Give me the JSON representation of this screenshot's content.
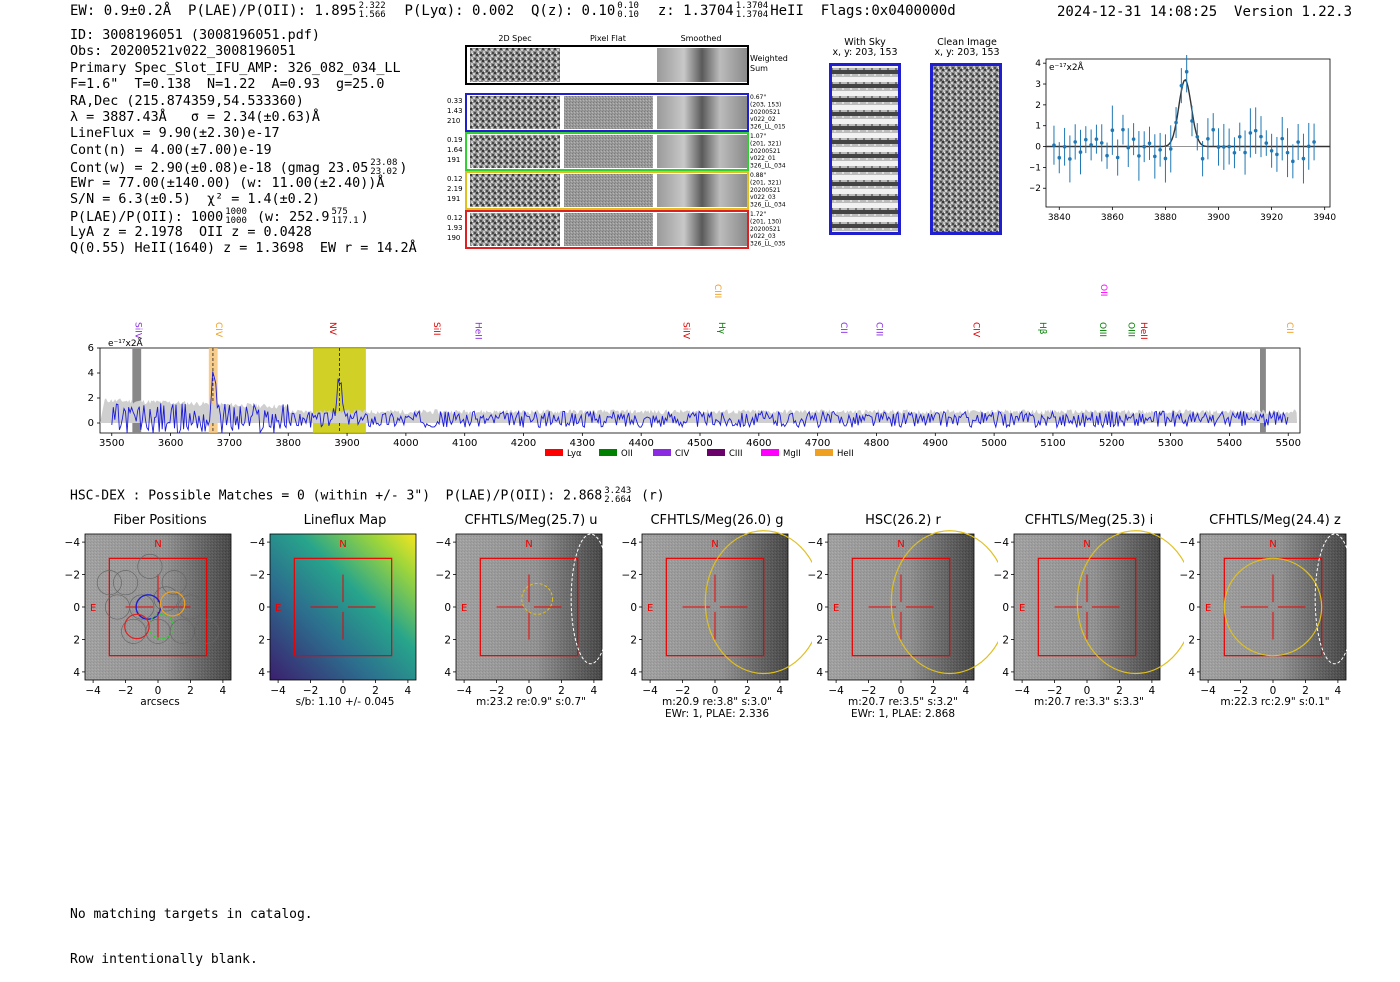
{
  "header": {
    "ew": "EW: 0.9±0.2Å",
    "plae_label": "P(LAE)/P(OII): 1.895",
    "plae_hi": "2.322",
    "plae_lo": "1.566",
    "plya": "P(Lyα): 0.002",
    "qz_label": "Q(z): 0.10",
    "qz_hi": "0.10",
    "qz_lo": "0.10",
    "z_label": "z: 1.3704",
    "z_hi": "1.3704",
    "z_lo": "1.3704",
    "z_tail": "HeII  Flags:0x0400000d",
    "timestamp": "2024-12-31 14:08:25",
    "version": "Version 1.22.3"
  },
  "info": {
    "id": "ID: 3008196051 (3008196051.pdf)",
    "obs": "Obs: 20200521v022_3008196051",
    "slot": "Primary Spec_Slot_IFU_AMP: 326_082_034_LL",
    "params": "F=1.6\"  T=0.138  N=1.22  A=0.93  g=25.0",
    "radec": "RA,Dec (215.874359,54.533360)",
    "lambda": "λ = 3887.43Å   σ = 2.34(±0.63)Å",
    "lineflux": "LineFlux = 9.90(±2.30)e-17",
    "contn": "Cont(n) = 4.00(±7.00)e-19",
    "contw": "Cont(w) = 2.90(±0.08)e-18 (gmag 23.05",
    "contw_hi": "23.08",
    "contw_lo": "23.02",
    "ewr": "EWr = 77.00(±140.00) (w: 11.00(±2.40))Å",
    "sn": "S/N = 6.3(±0.5)  χ² = 1.4(±0.2)",
    "plae": "P(LAE)/P(OII): 1000",
    "plae_hi": "1000",
    "plae_lo": "1000",
    "plae_w": "(w: 252.9",
    "plae_w_hi": "575",
    "plae_w_lo": "117.1",
    "lya": "LyA z = 2.1978  OII z = 0.0428",
    "q": "Q(0.55) HeII(1640) z = 1.3698  EW r = 14.2Å"
  },
  "cutouts": {
    "col_headers": [
      "2D Spec",
      "Pixel Flat",
      "Smoothed"
    ],
    "weighted_label": [
      "Weighted",
      "Sum"
    ],
    "rows": [
      {
        "left": [
          "0.33",
          "1.43",
          "210"
        ],
        "right": [
          "0.67\"",
          "(203, 153)",
          "20200521",
          "v022_02",
          "326_LL_015"
        ],
        "color": "#1f1fd0"
      },
      {
        "left": [
          "0.19",
          "1.64",
          "191"
        ],
        "right": [
          "1.07\"",
          "(201, 321)",
          "20200521",
          "v022_01",
          "326_LL_034"
        ],
        "color": "#2fd02f"
      },
      {
        "left": [
          "0.12",
          "2.19",
          "191"
        ],
        "right": [
          "0.88\"",
          "(201, 321)",
          "20200521",
          "v022_03",
          "326_LL_034"
        ],
        "color": "#e0c020"
      },
      {
        "left": [
          "0.12",
          "1.93",
          "190"
        ],
        "right": [
          "1.72\"",
          "(201, 130)",
          "20200521",
          "v022_03",
          "326_LL_035"
        ],
        "color": "#e02020"
      }
    ]
  },
  "sky": {
    "with_sky": [
      "With Sky",
      "x, y: 203, 153"
    ],
    "clean": [
      "Clean Image",
      "x, y: 203, 153"
    ]
  },
  "zoom_plot": {
    "unit": "e⁻¹⁷x2Å",
    "x_ticks": [
      "3840",
      "3860",
      "3880",
      "3900",
      "3920",
      "3940"
    ],
    "y_ticks": [
      "4",
      "3",
      "2",
      "1",
      "0",
      "−1",
      "−2"
    ]
  },
  "spectrum": {
    "unit": "e⁻¹⁷x2Å",
    "y_ticks": [
      "6",
      "4",
      "2",
      "0"
    ],
    "x_ticks": [
      "3500",
      "3600",
      "3700",
      "3800",
      "3900",
      "4000",
      "4100",
      "4200",
      "4300",
      "4400",
      "4500",
      "4600",
      "4700",
      "4800",
      "4900",
      "5000",
      "5100",
      "5200",
      "5300",
      "5400",
      "5500"
    ],
    "lines": [
      {
        "label": "SiIV",
        "wl": 3535,
        "color": "#8a2be2",
        "row": 0
      },
      {
        "label": "CIV",
        "wl": 3672,
        "color": "#f0a020",
        "row": 0
      },
      {
        "label": "NV",
        "wl": 3866,
        "color": "#e00000",
        "row": 0
      },
      {
        "label": "SiII",
        "wl": 4043,
        "color": "#e00000",
        "row": 0
      },
      {
        "label": "HeII",
        "wl": 4113,
        "color": "#8a2be2",
        "row": 0
      },
      {
        "label": "SiIV",
        "wl": 4467,
        "color": "#e00000",
        "row": 0
      },
      {
        "label": "CIII",
        "wl": 4520,
        "color": "#f0a020",
        "row": 1
      },
      {
        "label": "Hγ",
        "wl": 4527,
        "color": "#008000",
        "row": 0
      },
      {
        "label": "CII",
        "wl": 4735,
        "color": "#8a2be2",
        "row": 0
      },
      {
        "label": "CIII",
        "wl": 4795,
        "color": "#8a2be2",
        "row": 0
      },
      {
        "label": "CIV",
        "wl": 4960,
        "color": "#e00000",
        "row": 0
      },
      {
        "label": "Hβ",
        "wl": 5073,
        "color": "#008000",
        "row": 0
      },
      {
        "label": "OII",
        "wl": 5177,
        "color": "#ff00ff",
        "row": 1
      },
      {
        "label": "OIII",
        "wl": 5175,
        "color": "#008000",
        "row": 0
      },
      {
        "label": "OIII",
        "wl": 5223,
        "color": "#008000",
        "row": 0
      },
      {
        "label": "HeII",
        "wl": 5245,
        "color": "#e00000",
        "row": 0
      },
      {
        "label": "CII",
        "wl": 5493,
        "color": "#f0a020",
        "row": 0
      }
    ],
    "legend": [
      {
        "label": "Lyα",
        "color": "#ff0000"
      },
      {
        "label": "OII",
        "color": "#008000"
      },
      {
        "label": "CIV",
        "color": "#8a2be2"
      },
      {
        "label": "CIII",
        "color": "#6a006a"
      },
      {
        "label": "MgII",
        "color": "#ff00ff"
      },
      {
        "label": "HeII",
        "color": "#f0a020"
      }
    ]
  },
  "hsc": {
    "title": "HSC-DEX : Possible Matches = 0 (within +/- 3\")  P(LAE)/P(OII): 2.868",
    "title_hi": "3.243",
    "title_lo": "2.664",
    "title_tail": "(r)"
  },
  "panels": [
    {
      "title": "Fiber Positions",
      "caption": [
        "arcsecs"
      ]
    },
    {
      "title": "Lineflux Map",
      "caption": [
        "s/b: 1.10 +/- 0.045"
      ]
    },
    {
      "title": "CFHTLS/Meg(25.7) u",
      "caption": [
        "m:23.2  re:0.9\"  s:0.7\""
      ]
    },
    {
      "title": "CFHTLS/Meg(26.0) g",
      "caption": [
        "m:20.9  re:3.8\"  s:3.0\"",
        "EWr: 1, PLAE: 2.336"
      ]
    },
    {
      "title": "HSC(26.2) r",
      "caption": [
        "m:20.7  re:3.5\"  s:3.2\"",
        "EWr: 1, PLAE: 2.868"
      ]
    },
    {
      "title": "CFHTLS/Meg(25.3) i",
      "caption": [
        "m:20.7  re:3.3\"  s:3.3\""
      ]
    },
    {
      "title": "CFHTLS/Meg(24.4) z",
      "caption": [
        "m:22.3  rc:2.9\"  s:0.1\""
      ]
    }
  ],
  "panel_ticks": {
    "x": [
      "−4",
      "−2",
      "0",
      "2",
      "4"
    ],
    "y": [
      "4",
      "2",
      "0",
      "−2",
      "−4"
    ],
    "north": "N",
    "east": "E"
  },
  "footer": {
    "line1": "No matching targets in catalog.",
    "line2": "Row intentionally blank."
  }
}
